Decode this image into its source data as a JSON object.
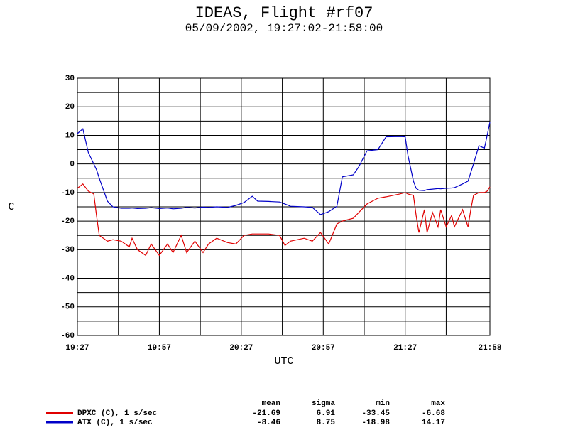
{
  "chart_data": {
    "type": "line",
    "title": "IDEAS, Flight #rf07",
    "subtitle": "05/09/2002, 19:27:02-21:58:00",
    "x_label": "UTC",
    "y_label": "C",
    "xlim": [
      "19:27",
      "21:58"
    ],
    "xticks": [
      "19:27",
      "19:57",
      "20:27",
      "20:57",
      "21:27",
      "21:58"
    ],
    "xgrid": [
      "19:42",
      "20:12",
      "20:42",
      "21:12",
      "21:42"
    ],
    "ylim": [
      -60,
      30
    ],
    "yticks": [
      30,
      20,
      10,
      0,
      -10,
      -20,
      -30,
      -40,
      -50,
      -60
    ],
    "ygrid": [
      25,
      15,
      5,
      -5,
      -15,
      -25,
      -35,
      -45,
      -55
    ],
    "grid": true,
    "x": [
      "19:27",
      "19:29",
      "19:31",
      "19:33",
      "19:34",
      "19:35",
      "19:38",
      "19:40",
      "19:43",
      "19:46",
      "19:47",
      "19:49",
      "19:52",
      "19:54",
      "19:57",
      "20:00",
      "20:02",
      "20:05",
      "20:07",
      "20:10",
      "20:13",
      "20:15",
      "20:18",
      "20:22",
      "20:25",
      "20:28",
      "20:31",
      "20:33",
      "20:37",
      "20:41",
      "20:43",
      "20:45",
      "20:50",
      "20:53",
      "20:56",
      "20:59",
      "21:02",
      "21:04",
      "21:08",
      "21:10",
      "21:13",
      "21:17",
      "21:20",
      "21:25",
      "21:27",
      "21:28",
      "21:30",
      "21:31",
      "21:32",
      "21:34",
      "21:35",
      "21:37",
      "21:39",
      "21:40",
      "21:42",
      "21:44",
      "21:45",
      "21:48",
      "21:50",
      "21:51",
      "21:52",
      "21:54",
      "21:56",
      "21:57",
      "21:58"
    ],
    "stat_labels": [
      "mean",
      "sigma",
      "min",
      "max"
    ],
    "series": [
      {
        "name": "DPXC (C), 1 s/sec",
        "color": "#e00000",
        "stats": [
          -21.69,
          6.91,
          -33.45,
          -6.68
        ],
        "values": [
          -8.5,
          -7,
          -9.5,
          -10.5,
          -18,
          -25,
          -27,
          -26.5,
          -27,
          -29,
          -26,
          -30,
          -32,
          -28,
          -32,
          -28,
          -31,
          -25,
          -31,
          -27,
          -31,
          -28,
          -26,
          -27.5,
          -28,
          -25,
          -24.5,
          -24.5,
          -24.5,
          -25,
          -28.5,
          -27,
          -26,
          -27,
          -24,
          -28,
          -21,
          -20,
          -19,
          -17,
          -14,
          -12,
          -11.5,
          -10.5,
          -10,
          -10.5,
          -11,
          -18,
          -24,
          -16,
          -24,
          -17,
          -22,
          -16,
          -22,
          -18,
          -22,
          -16,
          -22,
          -16,
          -11,
          -10,
          -10,
          -9.5,
          -8
        ]
      },
      {
        "name": "ATX (C), 1 s/sec",
        "color": "#0000c8",
        "stats": [
          -8.46,
          8.75,
          -18.98,
          14.17
        ],
        "values": [
          10.6,
          12.3,
          4,
          0,
          -2,
          -5,
          -13,
          -15,
          -15.5,
          -15.5,
          -15.4,
          -15.6,
          -15.5,
          -15.3,
          -15.6,
          -15.4,
          -15.7,
          -15.5,
          -15.2,
          -15.4,
          -15.1,
          -15.2,
          -15,
          -15.2,
          -14.5,
          -13.5,
          -11.3,
          -13,
          -13.1,
          -13.3,
          -14,
          -14.8,
          -15,
          -15.2,
          -17.7,
          -16.7,
          -14.8,
          -4.5,
          -3.8,
          -1,
          4.6,
          5,
          9.5,
          9.6,
          9.5,
          3,
          -6,
          -8.5,
          -9.2,
          -9.3,
          -9,
          -8.8,
          -8.6,
          -8.7,
          -8.5,
          -8.4,
          -8.3,
          -7,
          -6,
          -3,
          0,
          6.4,
          5.5,
          10,
          14.6
        ]
      }
    ]
  }
}
